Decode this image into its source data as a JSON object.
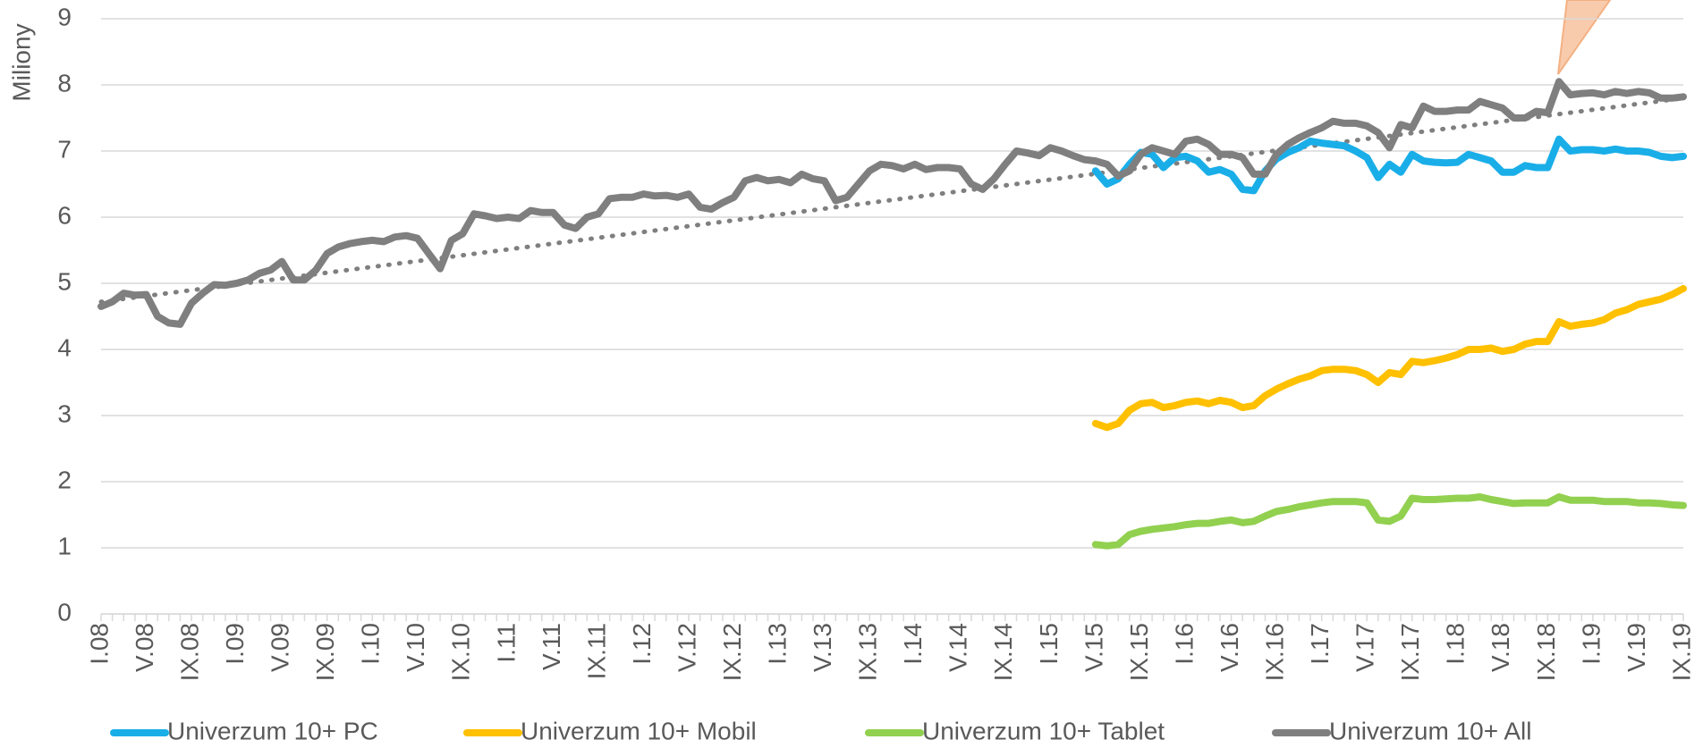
{
  "chart_data": {
    "type": "line",
    "ylabel": "Miliony",
    "ylim": [
      0,
      9
    ],
    "yticks": [
      0,
      1,
      2,
      3,
      4,
      5,
      6,
      7,
      8,
      9
    ],
    "grid": true,
    "legend": "bottom",
    "categories": [
      "I.08",
      null,
      null,
      null,
      "V.08",
      null,
      null,
      null,
      "IX.08",
      null,
      null,
      null,
      "I.09",
      null,
      null,
      null,
      "V.09",
      null,
      null,
      null,
      "IX.09",
      null,
      null,
      null,
      "I.10",
      null,
      null,
      null,
      "V.10",
      null,
      null,
      null,
      "IX.10",
      null,
      null,
      null,
      "I.11",
      null,
      null,
      null,
      "V.11",
      null,
      null,
      null,
      "IX.11",
      null,
      null,
      null,
      "I.12",
      null,
      null,
      null,
      "V.12",
      null,
      null,
      null,
      "IX.12",
      null,
      null,
      null,
      "I.13",
      null,
      null,
      null,
      "V.13",
      null,
      null,
      null,
      "IX.13",
      null,
      null,
      null,
      "I.14",
      null,
      null,
      null,
      "V.14",
      null,
      null,
      null,
      "IX.14",
      null,
      null,
      null,
      "I.15",
      null,
      null,
      null,
      "V.15",
      null,
      null,
      null,
      "IX.15",
      null,
      null,
      null,
      "I.16",
      null,
      null,
      null,
      "V.16",
      null,
      null,
      null,
      "IX.16",
      null,
      null,
      null,
      "I.17",
      null,
      null,
      null,
      "V.17",
      null,
      null,
      null,
      "IX.17",
      null,
      null,
      null,
      "I.18",
      null,
      null,
      null,
      "V.18",
      null,
      null,
      null,
      "IX.18",
      null,
      null,
      null,
      "I.19",
      null,
      null,
      null,
      "V.19",
      null,
      null,
      null,
      "IX.19"
    ],
    "series": [
      {
        "name": "Univerzum 10+ PC",
        "color": "#1aaee8",
        "values": [
          null,
          null,
          null,
          null,
          null,
          null,
          null,
          null,
          null,
          null,
          null,
          null,
          null,
          null,
          null,
          null,
          null,
          null,
          null,
          null,
          null,
          null,
          null,
          null,
          null,
          null,
          null,
          null,
          null,
          null,
          null,
          null,
          null,
          null,
          null,
          null,
          null,
          null,
          null,
          null,
          null,
          null,
          null,
          null,
          null,
          null,
          null,
          null,
          null,
          null,
          null,
          null,
          null,
          null,
          null,
          null,
          null,
          null,
          null,
          null,
          null,
          null,
          null,
          null,
          null,
          null,
          null,
          null,
          null,
          null,
          null,
          null,
          null,
          null,
          null,
          null,
          null,
          null,
          null,
          null,
          null,
          null,
          null,
          null,
          null,
          null,
          null,
          null,
          6.7,
          6.5,
          6.58,
          6.8,
          6.98,
          6.95,
          6.75,
          6.9,
          6.92,
          6.85,
          6.68,
          6.72,
          6.65,
          6.42,
          6.4,
          6.7,
          6.88,
          6.98,
          7.05,
          7.15,
          7.12,
          7.1,
          7.08,
          7.0,
          6.9,
          6.6,
          6.8,
          6.68,
          6.95,
          6.85,
          6.83,
          6.82,
          6.83,
          6.95,
          6.9,
          6.85,
          6.68,
          6.68,
          6.78,
          6.75,
          6.75,
          7.18,
          7.0,
          7.02,
          7.02,
          7.0,
          7.03,
          7.0,
          7.0,
          6.98,
          6.92,
          6.9,
          6.92
        ]
      },
      {
        "name": "Univerzum 10+ Mobil",
        "color": "#ffc000",
        "values": [
          null,
          null,
          null,
          null,
          null,
          null,
          null,
          null,
          null,
          null,
          null,
          null,
          null,
          null,
          null,
          null,
          null,
          null,
          null,
          null,
          null,
          null,
          null,
          null,
          null,
          null,
          null,
          null,
          null,
          null,
          null,
          null,
          null,
          null,
          null,
          null,
          null,
          null,
          null,
          null,
          null,
          null,
          null,
          null,
          null,
          null,
          null,
          null,
          null,
          null,
          null,
          null,
          null,
          null,
          null,
          null,
          null,
          null,
          null,
          null,
          null,
          null,
          null,
          null,
          null,
          null,
          null,
          null,
          null,
          null,
          null,
          null,
          null,
          null,
          null,
          null,
          null,
          null,
          null,
          null,
          null,
          null,
          null,
          null,
          null,
          null,
          null,
          null,
          2.88,
          2.82,
          2.88,
          3.08,
          3.18,
          3.2,
          3.12,
          3.15,
          3.2,
          3.22,
          3.18,
          3.23,
          3.2,
          3.12,
          3.15,
          3.3,
          3.4,
          3.48,
          3.55,
          3.6,
          3.68,
          3.7,
          3.7,
          3.68,
          3.62,
          3.5,
          3.65,
          3.62,
          3.82,
          3.8,
          3.83,
          3.87,
          3.92,
          4.0,
          4.0,
          4.02,
          3.97,
          4.0,
          4.08,
          4.12,
          4.12,
          4.42,
          4.35,
          4.38,
          4.4,
          4.45,
          4.55,
          4.6,
          4.68,
          4.72,
          4.76,
          4.83,
          4.92
        ]
      },
      {
        "name": "Univerzum 10+ Tablet",
        "color": "#92d050",
        "values": [
          null,
          null,
          null,
          null,
          null,
          null,
          null,
          null,
          null,
          null,
          null,
          null,
          null,
          null,
          null,
          null,
          null,
          null,
          null,
          null,
          null,
          null,
          null,
          null,
          null,
          null,
          null,
          null,
          null,
          null,
          null,
          null,
          null,
          null,
          null,
          null,
          null,
          null,
          null,
          null,
          null,
          null,
          null,
          null,
          null,
          null,
          null,
          null,
          null,
          null,
          null,
          null,
          null,
          null,
          null,
          null,
          null,
          null,
          null,
          null,
          null,
          null,
          null,
          null,
          null,
          null,
          null,
          null,
          null,
          null,
          null,
          null,
          null,
          null,
          null,
          null,
          null,
          null,
          null,
          null,
          null,
          null,
          null,
          null,
          null,
          null,
          null,
          null,
          1.05,
          1.03,
          1.05,
          1.2,
          1.25,
          1.28,
          1.3,
          1.32,
          1.35,
          1.37,
          1.37,
          1.4,
          1.42,
          1.38,
          1.4,
          1.48,
          1.55,
          1.58,
          1.62,
          1.65,
          1.68,
          1.7,
          1.7,
          1.7,
          1.68,
          1.42,
          1.4,
          1.48,
          1.75,
          1.73,
          1.73,
          1.74,
          1.75,
          1.75,
          1.77,
          1.73,
          1.7,
          1.67,
          1.68,
          1.68,
          1.68,
          1.77,
          1.72,
          1.72,
          1.72,
          1.7,
          1.7,
          1.7,
          1.68,
          1.68,
          1.67,
          1.65,
          1.64
        ]
      },
      {
        "name": "Univerzum 10+ All",
        "color": "#7f7f7f",
        "values": [
          4.65,
          4.72,
          4.85,
          4.82,
          4.83,
          4.5,
          4.4,
          4.38,
          4.7,
          4.85,
          4.98,
          4.97,
          5.0,
          5.05,
          5.15,
          5.2,
          5.33,
          5.05,
          5.05,
          5.2,
          5.45,
          5.55,
          5.6,
          5.63,
          5.65,
          5.63,
          5.7,
          5.72,
          5.68,
          5.45,
          5.22,
          5.65,
          5.75,
          6.05,
          6.02,
          5.98,
          6.0,
          5.98,
          6.1,
          6.07,
          6.07,
          5.88,
          5.83,
          6.0,
          6.05,
          6.28,
          6.3,
          6.3,
          6.35,
          6.32,
          6.33,
          6.3,
          6.35,
          6.15,
          6.12,
          6.22,
          6.3,
          6.55,
          6.6,
          6.55,
          6.57,
          6.52,
          6.65,
          6.58,
          6.55,
          6.25,
          6.3,
          6.5,
          6.7,
          6.8,
          6.78,
          6.73,
          6.8,
          6.72,
          6.75,
          6.75,
          6.73,
          6.5,
          6.42,
          6.58,
          6.8,
          7.0,
          6.97,
          6.93,
          7.05,
          7.0,
          6.93,
          6.87,
          6.85,
          6.8,
          6.62,
          6.7,
          6.95,
          7.05,
          7.0,
          6.95,
          7.15,
          7.18,
          7.1,
          6.95,
          6.95,
          6.9,
          6.65,
          6.65,
          6.95,
          7.1,
          7.2,
          7.28,
          7.35,
          7.45,
          7.42,
          7.42,
          7.38,
          7.28,
          7.05,
          7.4,
          7.35,
          7.68,
          7.6,
          7.6,
          7.62,
          7.62,
          7.75,
          7.7,
          7.65,
          7.5,
          7.5,
          7.6,
          7.58,
          8.05,
          7.85,
          7.87,
          7.88,
          7.85,
          7.9,
          7.87,
          7.9,
          7.88,
          7.8,
          7.8,
          7.82
        ]
      }
    ],
    "trendline": {
      "color": "#7f7f7f",
      "values": [
        4.72,
        7.8
      ]
    }
  }
}
